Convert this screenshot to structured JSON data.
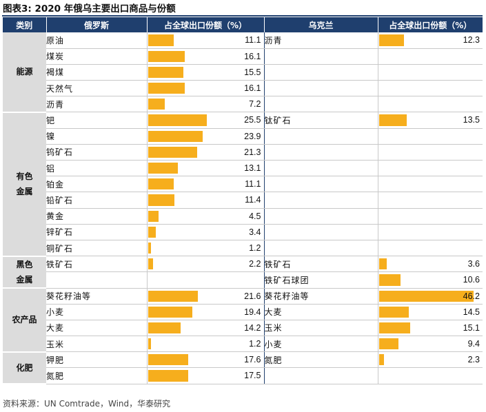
{
  "title": "图表3:   2020 年俄乌主要出口商品与份额",
  "headers": {
    "category": "类别",
    "russia": "俄罗斯",
    "russia_share": "占全球出口份额（%）",
    "ukraine": "乌克兰",
    "ukraine_share": "占全球出口份额（%）"
  },
  "bar_color": "#f6ae1d",
  "header_color": "#1f3f6e",
  "bar_scale_max": 50,
  "groups": [
    {
      "category": "能源",
      "rows": [
        {
          "ru_name": "原油",
          "ru_share": "11.1",
          "ua_name": "沥青",
          "ua_share": "12.3"
        },
        {
          "ru_name": "煤炭",
          "ru_share": "16.1",
          "ua_name": "",
          "ua_share": ""
        },
        {
          "ru_name": "褐煤",
          "ru_share": "15.5",
          "ua_name": "",
          "ua_share": ""
        },
        {
          "ru_name": "天然气",
          "ru_share": "16.1",
          "ua_name": "",
          "ua_share": ""
        },
        {
          "ru_name": "沥青",
          "ru_share": "7.2",
          "ua_name": "",
          "ua_share": ""
        }
      ]
    },
    {
      "category": "有色\n金属",
      "rows": [
        {
          "ru_name": "钯",
          "ru_share": "25.5",
          "ua_name": "钛矿石",
          "ua_share": "13.5"
        },
        {
          "ru_name": "镍",
          "ru_share": "23.9",
          "ua_name": "",
          "ua_share": ""
        },
        {
          "ru_name": "钨矿石",
          "ru_share": "21.3",
          "ua_name": "",
          "ua_share": ""
        },
        {
          "ru_name": "铝",
          "ru_share": "13.1",
          "ua_name": "",
          "ua_share": ""
        },
        {
          "ru_name": "铂金",
          "ru_share": "11.1",
          "ua_name": "",
          "ua_share": ""
        },
        {
          "ru_name": "铅矿石",
          "ru_share": "11.4",
          "ua_name": "",
          "ua_share": ""
        },
        {
          "ru_name": "黄金",
          "ru_share": "4.5",
          "ua_name": "",
          "ua_share": ""
        },
        {
          "ru_name": "锌矿石",
          "ru_share": "3.4",
          "ua_name": "",
          "ua_share": ""
        },
        {
          "ru_name": "铜矿石",
          "ru_share": "1.2",
          "ua_name": "",
          "ua_share": ""
        }
      ]
    },
    {
      "category": "黑色\n金属",
      "rows": [
        {
          "ru_name": "铁矿石",
          "ru_share": "2.2",
          "ua_name": "铁矿石",
          "ua_share": "3.6"
        },
        {
          "ru_name": "",
          "ru_share": "",
          "ua_name": "铁矿石球团",
          "ua_share": "10.6"
        }
      ]
    },
    {
      "category": "农产品",
      "rows": [
        {
          "ru_name": "葵花籽油等",
          "ru_share": "21.6",
          "ua_name": "葵花籽油等",
          "ua_share": "46.2"
        },
        {
          "ru_name": "小麦",
          "ru_share": "19.4",
          "ua_name": "大麦",
          "ua_share": "14.5"
        },
        {
          "ru_name": "大麦",
          "ru_share": "14.2",
          "ua_name": "玉米",
          "ua_share": "15.1"
        },
        {
          "ru_name": "玉米",
          "ru_share": "1.2",
          "ua_name": "小麦",
          "ua_share": "9.4"
        }
      ]
    },
    {
      "category": "化肥",
      "rows": [
        {
          "ru_name": "钾肥",
          "ru_share": "17.6",
          "ua_name": "氮肥",
          "ua_share": "2.3"
        },
        {
          "ru_name": "氮肥",
          "ru_share": "17.5",
          "ua_name": "",
          "ua_share": ""
        }
      ]
    }
  ],
  "source": "资料来源：UN Comtrade，Wind，华泰研究"
}
